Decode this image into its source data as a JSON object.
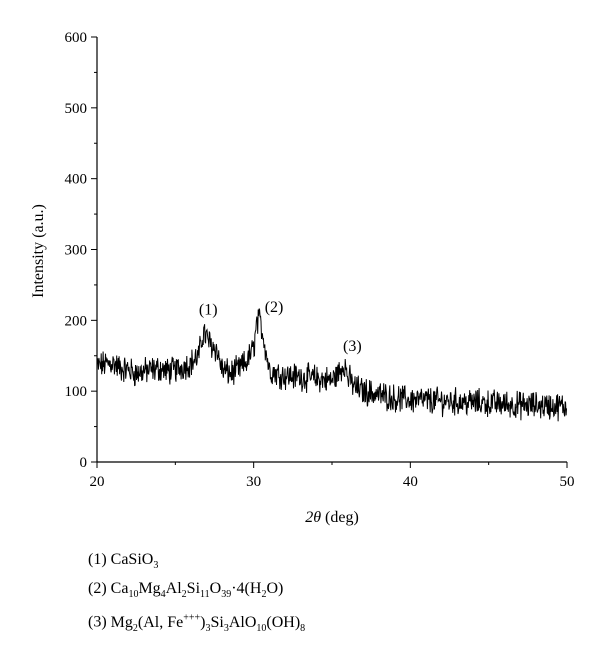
{
  "chart_data": {
    "type": "line",
    "xlabel_symbol": "2θ",
    "xlabel_unit": "(deg)",
    "ylabel": "Intensity (a.u.)",
    "xlim": [
      20,
      50
    ],
    "ylim": [
      0,
      600
    ],
    "x_ticks": [
      20,
      30,
      40,
      50
    ],
    "y_ticks": [
      0,
      100,
      200,
      300,
      400,
      500,
      600
    ],
    "grid": false,
    "series": [
      {
        "x": [
          20,
          20.5,
          21,
          21.5,
          22,
          22.5,
          23,
          23.5,
          24,
          24.5,
          25,
          25.5,
          26,
          26.5,
          26.8,
          27,
          27.3,
          27.6,
          28,
          28.5,
          29,
          29.5,
          30,
          30.2,
          30.4,
          30.6,
          31,
          31.5,
          32,
          33,
          34,
          35,
          35.5,
          35.8,
          36,
          36.5,
          37,
          38,
          39,
          40,
          41,
          42,
          43,
          44,
          45,
          46,
          47,
          48,
          49,
          50
        ],
        "y": [
          135,
          138,
          140,
          132,
          130,
          125,
          128,
          130,
          132,
          128,
          130,
          135,
          140,
          150,
          185,
          175,
          165,
          160,
          130,
          125,
          130,
          140,
          160,
          195,
          200,
          180,
          130,
          125,
          122,
          120,
          118,
          115,
          128,
          140,
          120,
          105,
          100,
          95,
          90,
          88,
          87,
          86,
          85,
          84,
          83,
          82,
          80,
          80,
          79,
          78
        ]
      }
    ],
    "peak_labels": [
      {
        "text": "(1)",
        "x": 27.1,
        "y": 208
      },
      {
        "text": "(2)",
        "x": 31.3,
        "y": 212
      },
      {
        "text": "(3)",
        "x": 36.3,
        "y": 157
      }
    ]
  },
  "legend": [
    {
      "index": "(1)",
      "formula_html": "CaSiO<sub>3</sub>"
    },
    {
      "index": "(2)",
      "formula_html": "Ca<sub>10</sub>Mg<sub>4</sub>Al<sub>2</sub>Si<sub>11</sub>O<sub>39</sub>·4(H<sub>2</sub>O)"
    },
    {
      "index": "(3)",
      "formula_html": "Mg<sub>2</sub>(Al, Fe<sup>+++</sup>)<sub>3</sub>Si<sub>3</sub>AlO<sub>10</sub>(OH)<sub>8</sub>"
    }
  ]
}
